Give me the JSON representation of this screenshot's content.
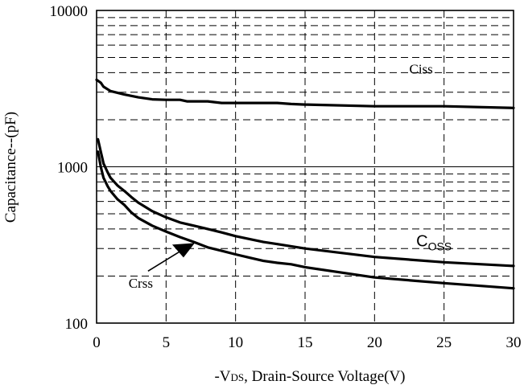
{
  "chart_data": {
    "type": "line",
    "title": "",
    "xlabel": "-VDS, Drain-Source Voltage(V)",
    "xlabel_parts": {
      "prefix": "-V",
      "subscript": "DS",
      "suffix": ", Drain-Source Voltage(V)"
    },
    "ylabel": "Capacitance--(pF)",
    "xlim": [
      0,
      30
    ],
    "ylim": [
      100,
      10000
    ],
    "yscale": "log",
    "grid": true,
    "x_ticks": [
      0,
      5,
      10,
      15,
      20,
      25,
      30
    ],
    "x_tick_labels": [
      "0",
      "5",
      "10",
      "15",
      "20",
      "25",
      "30"
    ],
    "y_ticks": [
      100,
      1000,
      10000
    ],
    "y_tick_labels": [
      "100",
      "1000",
      "10000"
    ],
    "series": [
      {
        "name": "Ciss",
        "x": [
          0,
          0.3,
          0.5,
          1,
          2,
          3,
          4,
          5,
          6,
          6.5,
          8,
          9,
          10,
          12,
          13,
          14,
          15,
          20,
          25,
          30
        ],
        "y": [
          3600,
          3450,
          3250,
          3050,
          2900,
          2780,
          2700,
          2680,
          2680,
          2620,
          2620,
          2560,
          2560,
          2560,
          2560,
          2520,
          2500,
          2440,
          2440,
          2380
        ]
      },
      {
        "name": "Coss",
        "label_parts": {
          "main": "C",
          "sub": "OSS"
        },
        "x": [
          0.1,
          0.3,
          0.5,
          0.8,
          1,
          1.5,
          2,
          2.5,
          3,
          4,
          5,
          6,
          7,
          8,
          9,
          10,
          11,
          12,
          13,
          15,
          20,
          25,
          30
        ],
        "y": [
          1500,
          1250,
          1050,
          920,
          850,
          760,
          700,
          640,
          590,
          520,
          475,
          440,
          420,
          400,
          380,
          360,
          345,
          330,
          320,
          300,
          265,
          245,
          232
        ]
      },
      {
        "name": "Crss",
        "x": [
          0.1,
          0.3,
          0.5,
          0.8,
          1,
          1.5,
          2,
          2.5,
          3,
          4,
          5,
          6,
          7,
          8,
          9,
          10,
          11,
          12,
          13,
          14,
          15,
          20,
          25,
          30
        ],
        "y": [
          1250,
          1000,
          850,
          750,
          700,
          620,
          570,
          510,
          470,
          420,
          385,
          355,
          330,
          305,
          290,
          275,
          262,
          250,
          243,
          238,
          228,
          196,
          180,
          167
        ]
      }
    ],
    "annotations": [
      {
        "text": "Ciss",
        "x": 22.5,
        "y": 3950
      },
      {
        "text": "Coss",
        "x": 23,
        "y": 310
      },
      {
        "text": "Crss",
        "x": 2.3,
        "y": 168
      }
    ],
    "arrow": {
      "from": [
        3.7,
        215
      ],
      "to": [
        6.6,
        310
      ]
    }
  }
}
